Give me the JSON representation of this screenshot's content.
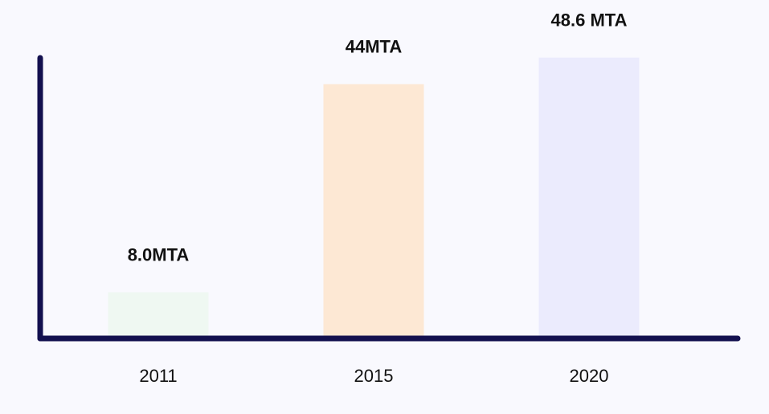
{
  "chart_data": {
    "type": "bar",
    "categories": [
      "2011",
      "2015",
      "2020"
    ],
    "values": [
      8.0,
      44,
      48.6
    ],
    "data_labels": [
      "8.0MTA",
      "44MTA",
      "48.6 MTA"
    ],
    "unit": "MTA",
    "title": "",
    "xlabel": "",
    "ylabel": "",
    "ylim": [
      0,
      53
    ],
    "grid": false,
    "legend": "none",
    "bar_colors": [
      "#eff8f2",
      "#fde8d4",
      "#ebebfd"
    ],
    "axis_color": "#13104f",
    "background": "#f9f9fe"
  }
}
